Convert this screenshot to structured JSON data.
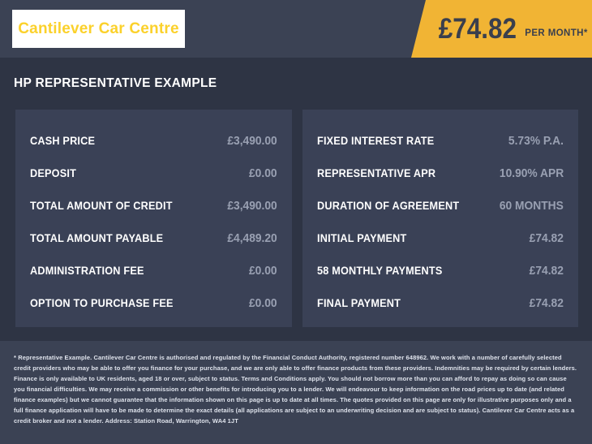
{
  "brand": {
    "name": "Cantilever Car Centre"
  },
  "price_flag": {
    "amount": "£74.82",
    "period": "PER MONTH*"
  },
  "heading": "HP REPRESENTATIVE EXAMPLE",
  "left_panel": {
    "rows": [
      {
        "label": "CASH PRICE",
        "value": "£3,490.00"
      },
      {
        "label": "DEPOSIT",
        "value": "£0.00"
      },
      {
        "label": "TOTAL AMOUNT OF CREDIT",
        "value": "£3,490.00"
      },
      {
        "label": "TOTAL AMOUNT PAYABLE",
        "value": "£4,489.20"
      },
      {
        "label": "ADMINISTRATION FEE",
        "value": "£0.00"
      },
      {
        "label": "OPTION TO PURCHASE FEE",
        "value": "£0.00"
      }
    ]
  },
  "right_panel": {
    "rows": [
      {
        "label": "FIXED INTEREST RATE",
        "value": "5.73% P.A."
      },
      {
        "label": "REPRESENTATIVE APR",
        "value": "10.90% APR"
      },
      {
        "label": "DURATION OF AGREEMENT",
        "value": "60 MONTHS"
      },
      {
        "label": "INITIAL PAYMENT",
        "value": "£74.82"
      },
      {
        "label": "58 MONTHLY PAYMENTS",
        "value": "£74.82"
      },
      {
        "label": "FINAL PAYMENT",
        "value": "£74.82"
      }
    ]
  },
  "disclaimer": "* Representative Example. Cantilever Car Centre is authorised and regulated by the Financial Conduct Authority, registered number 648962. We work with a number of carefully selected credit providers who may be able to offer you finance for your purchase, and we are only able to offer finance products from these providers. Indemnities may be required by certain lenders. Finance is only available to UK residents, aged 18 or over, subject to status. Terms and Conditions apply. You should not borrow more than you can afford to repay as doing so can cause you financial difficulties. We may receive a commission or other benefits for introducing you to a lender. We will endeavour to keep information on the road prices up to date (and related finance examples) but we cannot guarantee that the information shown on this page is up to date at all times. The quotes provided on this page are only for illustrative purposes only and a full finance application will have to be made to determine the exact details (all applications are subject to an underwriting decision and are subject to status). Cantilever Car Centre acts as a credit broker and not a lender. Address: Station Road, Warrington, WA4 1JT",
  "colors": {
    "accent_yellow": "#f1b434",
    "logo_yellow": "#fbd12b",
    "header_bg": "#3b4254",
    "body_bg": "#2e3444",
    "panel_bg": "#3a4156",
    "label_text": "#ffffff",
    "value_text": "#99a0b2",
    "flag_text": "#3a3f4d"
  }
}
